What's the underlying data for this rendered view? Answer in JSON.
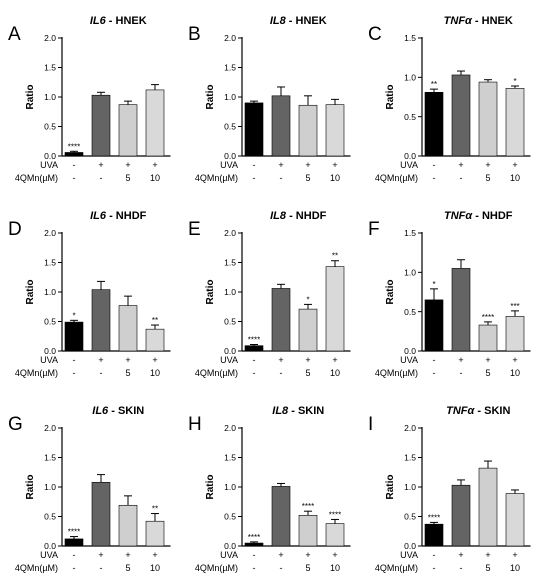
{
  "figure": {
    "row_labels": [
      "UVA",
      "4QMn(µM)"
    ],
    "group_labels": {
      "uva": [
        "-",
        "+",
        "+",
        "+"
      ],
      "qmn": [
        "-",
        "-",
        "5",
        "10"
      ]
    },
    "bar_colors": [
      "#000000",
      "#646464",
      "#cfcfcf",
      "#d9d9d9"
    ],
    "axis_color": "#000000"
  },
  "chart_data": [
    {
      "type": "bar",
      "panel": "A",
      "title_gene": "IL6",
      "title_rest": " - HNEK",
      "ylabel": "Ratio",
      "ylim": [
        0,
        2.0
      ],
      "yticks": [
        "0.0",
        "0.5",
        "1.0",
        "1.5",
        "2.0"
      ],
      "categories": [
        "ctrl",
        "UVA",
        "UVA+5",
        "UVA+10"
      ],
      "values": [
        0.06,
        1.03,
        0.87,
        1.12
      ],
      "errors": [
        0.02,
        0.05,
        0.06,
        0.09
      ],
      "signif": [
        "****",
        "",
        "",
        ""
      ]
    },
    {
      "type": "bar",
      "panel": "B",
      "title_gene": "IL8",
      "title_rest": " - HNEK",
      "ylabel": "Ratio",
      "ylim": [
        0,
        2.0
      ],
      "yticks": [
        "0.0",
        "0.5",
        "1.0",
        "1.5",
        "2.0"
      ],
      "categories": [
        "ctrl",
        "UVA",
        "UVA+5",
        "UVA+10"
      ],
      "values": [
        0.9,
        1.02,
        0.86,
        0.87
      ],
      "errors": [
        0.03,
        0.15,
        0.16,
        0.09
      ],
      "signif": [
        "",
        "",
        "",
        ""
      ]
    },
    {
      "type": "bar",
      "panel": "C",
      "title_gene": "TNFα",
      "title_rest": " - HNEK",
      "ylabel": "Ratio",
      "ylim": [
        0,
        1.5
      ],
      "yticks": [
        "0.0",
        "0.5",
        "1.0",
        "1.5"
      ],
      "categories": [
        "ctrl",
        "UVA",
        "UVA+5",
        "UVA+10"
      ],
      "values": [
        0.81,
        1.03,
        0.94,
        0.86
      ],
      "errors": [
        0.04,
        0.05,
        0.03,
        0.03
      ],
      "signif": [
        "**",
        "",
        "",
        "*"
      ]
    },
    {
      "type": "bar",
      "panel": "D",
      "title_gene": "IL6",
      "title_rest": " - NHDF",
      "ylabel": "Ratio",
      "ylim": [
        0,
        2.0
      ],
      "yticks": [
        "0.0",
        "0.5",
        "1.0",
        "1.5",
        "2.0"
      ],
      "categories": [
        "ctrl",
        "UVA",
        "UVA+5",
        "UVA+10"
      ],
      "values": [
        0.49,
        1.04,
        0.77,
        0.37
      ],
      "errors": [
        0.03,
        0.14,
        0.16,
        0.07
      ],
      "signif": [
        "*",
        "",
        "",
        "**"
      ]
    },
    {
      "type": "bar",
      "panel": "E",
      "title_gene": "IL8",
      "title_rest": " - NHDF",
      "ylabel": "Ratio",
      "ylim": [
        0,
        2.0
      ],
      "yticks": [
        "0.0",
        "0.5",
        "1.0",
        "1.5",
        "2.0"
      ],
      "categories": [
        "ctrl",
        "UVA",
        "UVA+5",
        "UVA+10"
      ],
      "values": [
        0.09,
        1.06,
        0.71,
        1.43
      ],
      "errors": [
        0.02,
        0.07,
        0.08,
        0.1
      ],
      "signif": [
        "****",
        "",
        "*",
        "**"
      ]
    },
    {
      "type": "bar",
      "panel": "F",
      "title_gene": "TNFα",
      "title_rest": " - NHDF",
      "ylabel": "Ratio",
      "ylim": [
        0,
        1.5
      ],
      "yticks": [
        "0.0",
        "0.5",
        "1.0",
        "1.5"
      ],
      "categories": [
        "ctrl",
        "UVA",
        "UVA+5",
        "UVA+10"
      ],
      "values": [
        0.65,
        1.05,
        0.33,
        0.44
      ],
      "errors": [
        0.14,
        0.11,
        0.04,
        0.07
      ],
      "signif": [
        "*",
        "",
        "****",
        "***"
      ]
    },
    {
      "type": "bar",
      "panel": "G",
      "title_gene": "IL6",
      "title_rest": " - SKIN",
      "ylabel": "Ratio",
      "ylim": [
        0,
        2.0
      ],
      "yticks": [
        "0.0",
        "0.5",
        "1.0",
        "1.5",
        "2.0"
      ],
      "categories": [
        "ctrl",
        "UVA",
        "UVA+5",
        "UVA+10"
      ],
      "values": [
        0.12,
        1.08,
        0.69,
        0.42
      ],
      "errors": [
        0.04,
        0.13,
        0.16,
        0.13
      ],
      "signif": [
        "****",
        "",
        "",
        "**"
      ]
    },
    {
      "type": "bar",
      "panel": "H",
      "title_gene": "IL8",
      "title_rest": " - SKIN",
      "ylabel": "Ratio",
      "ylim": [
        0,
        2.0
      ],
      "yticks": [
        "0.0",
        "0.5",
        "1.0",
        "1.5",
        "2.0"
      ],
      "categories": [
        "ctrl",
        "UVA",
        "UVA+5",
        "UVA+10"
      ],
      "values": [
        0.05,
        1.01,
        0.52,
        0.38
      ],
      "errors": [
        0.02,
        0.05,
        0.07,
        0.07
      ],
      "signif": [
        "****",
        "",
        "****",
        "****"
      ]
    },
    {
      "type": "bar",
      "panel": "I",
      "title_gene": "TNFα",
      "title_rest": " - SKIN",
      "ylabel": "Ratio",
      "ylim": [
        0,
        2.0
      ],
      "yticks": [
        "0.0",
        "0.5",
        "1.0",
        "1.5",
        "2.0"
      ],
      "categories": [
        "ctrl",
        "UVA",
        "UVA+5",
        "UVA+10"
      ],
      "values": [
        0.37,
        1.03,
        1.32,
        0.89
      ],
      "errors": [
        0.03,
        0.09,
        0.12,
        0.06
      ],
      "signif": [
        "****",
        "",
        "",
        ""
      ]
    }
  ]
}
